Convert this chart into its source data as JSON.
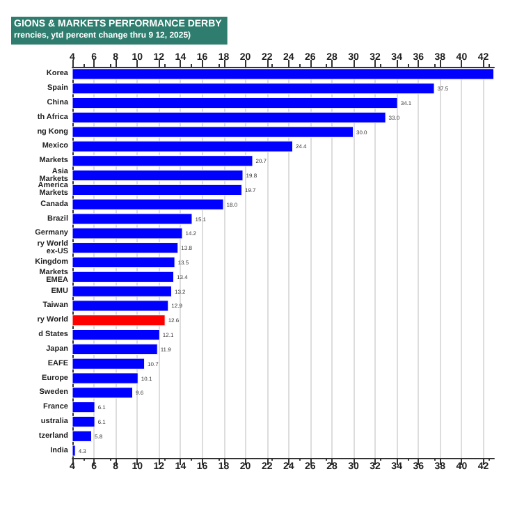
{
  "chart_data": {
    "type": "bar",
    "orientation": "horizontal",
    "title": "GIONS & MARKETS PERFORMANCE DERBY",
    "subtitle": "rrencies, ytd percent change thru 9 12, 2025)",
    "categories": [
      "Korea",
      "Spain",
      "China",
      "th Africa",
      "ng Kong",
      "Mexico",
      "Markets",
      "Asia\nMarkets",
      "America\nMarkets",
      "Canada",
      "Brazil",
      "Germany",
      "ry World\nex-US",
      "Kingdom",
      "Markets\nEMEA",
      "EMU",
      "Taiwan",
      "ry World",
      "d States",
      "Japan",
      "EAFE",
      "Europe",
      "Sweden",
      "France",
      "ustralia",
      "tzerland",
      "India"
    ],
    "values": [
      43,
      37.5,
      34.1,
      33.0,
      30.0,
      24.4,
      20.7,
      19.8,
      19.7,
      18.0,
      15.1,
      14.2,
      13.8,
      13.5,
      13.4,
      13.2,
      12.9,
      12.6,
      12.1,
      11.9,
      10.7,
      10.1,
      9.6,
      6.1,
      6.1,
      5.8,
      4.3
    ],
    "value_labels": [
      null,
      "37.5",
      "34.1",
      "33.0",
      "30.0",
      "24.4",
      "20.7",
      "19.8",
      "19.7",
      "18.0",
      "15.1",
      "14.2",
      "13.8",
      "13.5",
      "13.4",
      "13.2",
      "12.9",
      "12.6",
      "12.1",
      "11.9",
      "10.7",
      "10.1",
      "9.6",
      "6.1",
      "6.1",
      "5.8",
      "4.3"
    ],
    "colors": [
      "#0000ff",
      "#0000ff",
      "#0000ff",
      "#0000ff",
      "#0000ff",
      "#0000ff",
      "#0000ff",
      "#0000ff",
      "#0000ff",
      "#0000ff",
      "#0000ff",
      "#0000ff",
      "#0000ff",
      "#0000ff",
      "#0000ff",
      "#0000ff",
      "#0000ff",
      "#ff0000",
      "#0000ff",
      "#0000ff",
      "#0000ff",
      "#0000ff",
      "#0000ff",
      "#0000ff",
      "#0000ff",
      "#0000ff",
      "#0000ff"
    ],
    "xlim": [
      4,
      43
    ],
    "xticks": [
      4,
      6,
      8,
      10,
      12,
      14,
      16,
      18,
      20,
      22,
      24,
      26,
      28,
      30,
      32,
      34,
      36,
      38,
      40,
      42
    ],
    "x2lim": [
      4,
      43
    ],
    "x2ticks": [
      4,
      6,
      8,
      10,
      12,
      14,
      16,
      18,
      20,
      22,
      24,
      26,
      28,
      30,
      32,
      34,
      36,
      38,
      40,
      42
    ],
    "grid": "x"
  }
}
